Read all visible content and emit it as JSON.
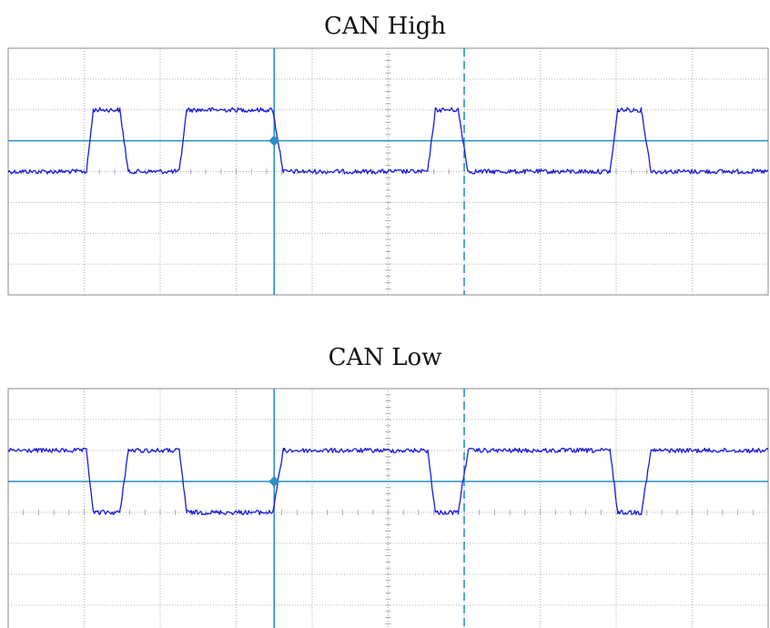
{
  "chart_data": [
    {
      "type": "line",
      "title": "CAN High",
      "xlim": [
        0,
        10
      ],
      "ylim": [
        -4,
        4
      ],
      "grid": true,
      "reference_level": 1,
      "cursors": {
        "solid": 3.5,
        "dashed": 6.0
      },
      "series": [
        {
          "values": [
            [
              0.0,
              0
            ],
            [
              1.03,
              0
            ],
            [
              1.12,
              2
            ],
            [
              1.47,
              2
            ],
            [
              1.58,
              0
            ],
            [
              2.25,
              0
            ],
            [
              2.35,
              2
            ],
            [
              3.48,
              2
            ],
            [
              3.62,
              0
            ],
            [
              5.52,
              0
            ],
            [
              5.62,
              2
            ],
            [
              5.92,
              2
            ],
            [
              6.05,
              0
            ],
            [
              7.92,
              0
            ],
            [
              8.02,
              2
            ],
            [
              8.33,
              2
            ],
            [
              8.46,
              0
            ],
            [
              10.0,
              0
            ]
          ]
        }
      ]
    },
    {
      "type": "line",
      "title": "CAN Low",
      "xlim": [
        0,
        10
      ],
      "ylim": [
        -4,
        4
      ],
      "grid": true,
      "reference_level": 1,
      "cursors": {
        "solid": 3.5,
        "dashed": 6.0
      },
      "series": [
        {
          "values": [
            [
              0.0,
              2
            ],
            [
              1.03,
              2
            ],
            [
              1.12,
              0
            ],
            [
              1.47,
              0
            ],
            [
              1.58,
              2
            ],
            [
              2.25,
              2
            ],
            [
              2.35,
              0
            ],
            [
              3.48,
              0
            ],
            [
              3.62,
              2
            ],
            [
              5.52,
              2
            ],
            [
              5.62,
              0
            ],
            [
              5.92,
              0
            ],
            [
              6.05,
              2
            ],
            [
              7.92,
              2
            ],
            [
              8.02,
              0
            ],
            [
              8.33,
              0
            ],
            [
              8.46,
              2
            ],
            [
              10.0,
              2
            ]
          ]
        }
      ]
    }
  ],
  "colors": {
    "trace": "#1a1adb",
    "cursor": "#2a8fc4",
    "grid": "#9a9a9a",
    "frame": "#8a8a8a"
  }
}
